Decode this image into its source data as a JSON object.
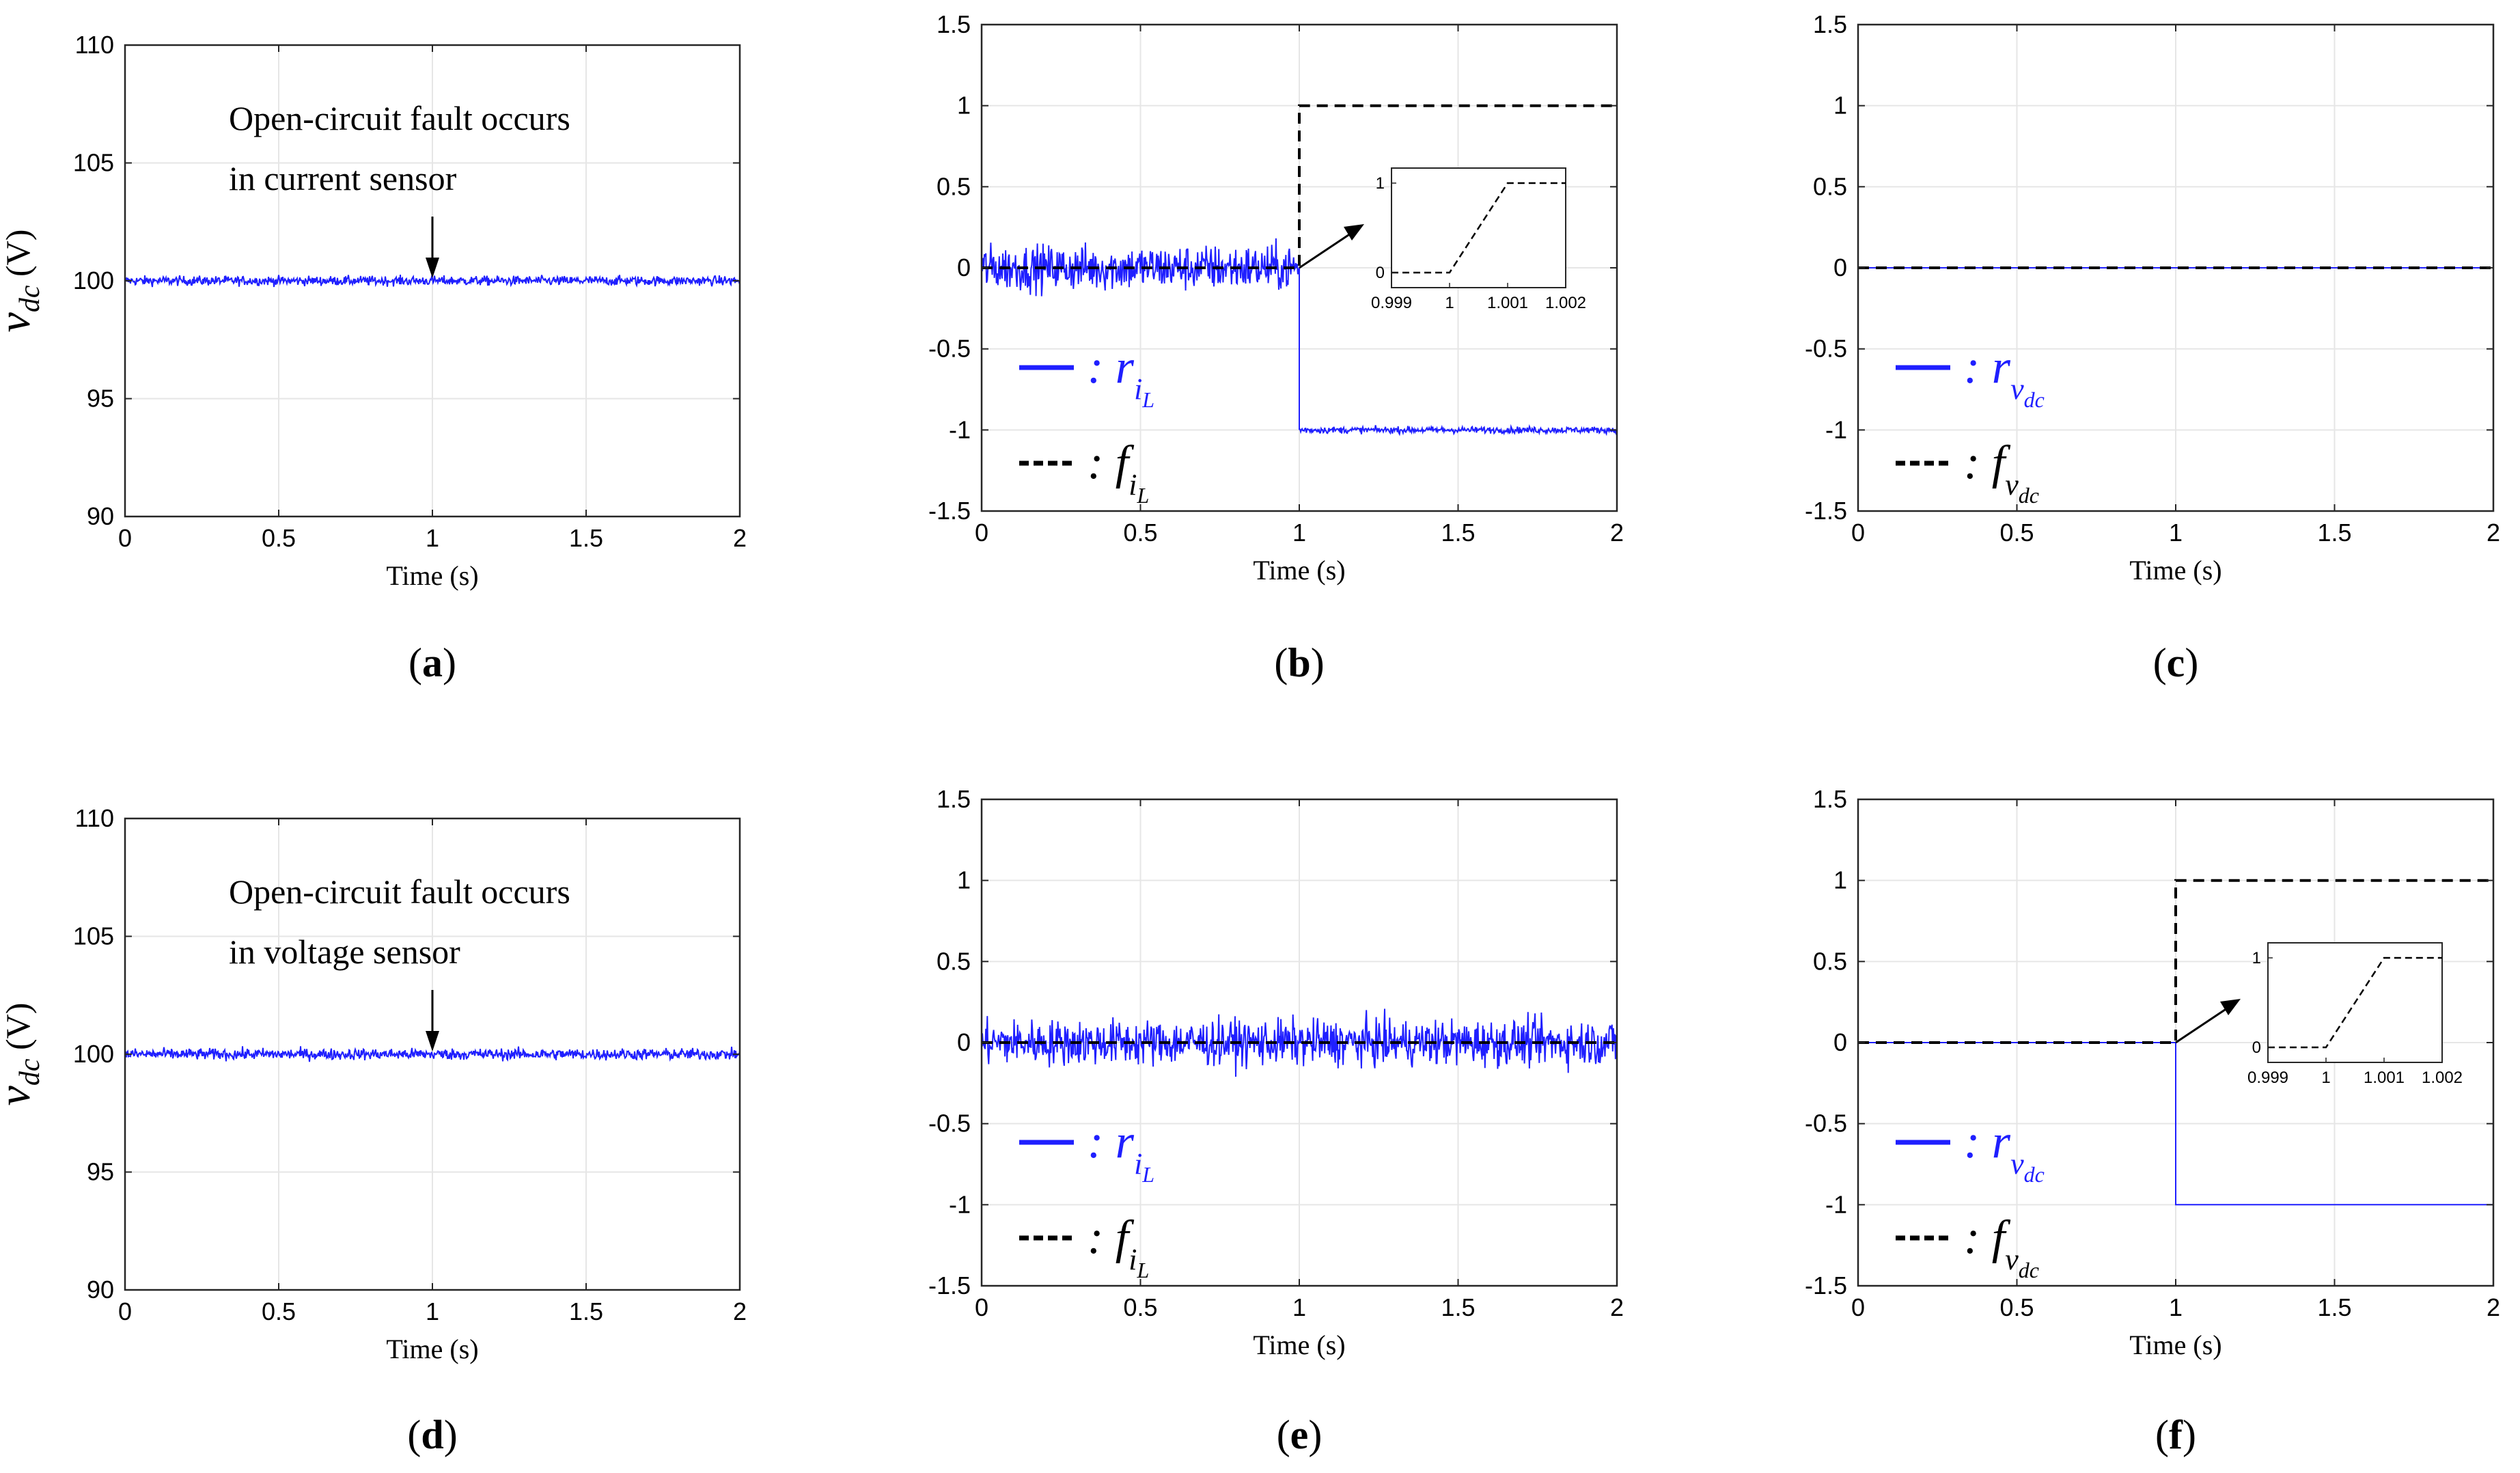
{
  "colors": {
    "residual": "#1f1fff",
    "fault": "#000000",
    "grid": "#e6e6e6",
    "axis": "#262626"
  },
  "chart_data": [
    {
      "id": "a",
      "caption": "a",
      "type": "line",
      "xlabel": "Time (s)",
      "ylabel": "v",
      "ylabel_sub": "dc",
      "ylabel_unit": "(V)",
      "xlim": [
        0,
        2
      ],
      "ylim": [
        90,
        110
      ],
      "xticks": [
        0,
        0.5,
        1,
        1.5,
        2
      ],
      "xtick_labels": [
        "0",
        "0.5",
        "1",
        "1.5",
        "2"
      ],
      "yticks": [
        90,
        95,
        100,
        105,
        110
      ],
      "ytick_labels": [
        "90",
        "95",
        "100",
        "105",
        "110"
      ],
      "annotation": {
        "lines": [
          "Open-circuit fault occurs",
          "in current sensor"
        ],
        "arrow_to": [
          1,
          100
        ]
      },
      "series": [
        {
          "name": "v_dc",
          "color": "#1f1fff",
          "kind": "noisy",
          "base": 100,
          "noise": 0.1
        }
      ],
      "legend": null,
      "inset": null
    },
    {
      "id": "b",
      "caption": "b",
      "type": "line",
      "xlabel": "Time (s)",
      "xlim": [
        0,
        2
      ],
      "ylim": [
        -1.5,
        1.5
      ],
      "xticks": [
        0,
        0.5,
        1,
        1.5,
        2
      ],
      "xtick_labels": [
        "0",
        "0.5",
        "1",
        "1.5",
        "2"
      ],
      "yticks": [
        -1.5,
        -1,
        -0.5,
        0,
        0.5,
        1,
        1.5
      ],
      "ytick_labels": [
        "-1.5",
        "-1",
        "-0.5",
        "0",
        "0.5",
        "1",
        "1.5"
      ],
      "series": [
        {
          "name": "r_iL",
          "color": "#1f1fff",
          "kind": "noisy_step",
          "base": 0,
          "after": -1,
          "step_at": 1,
          "noise_before": 0.07,
          "noise_after": 0.01
        },
        {
          "name": "f_iL",
          "color": "#000000",
          "dashed": true,
          "kind": "step",
          "base": 0,
          "after": 1,
          "step_at": 1
        }
      ],
      "legend": {
        "position": "bottom-left",
        "entries": [
          {
            "label": ": r",
            "sub": "i",
            "subsub": "L",
            "color": "#1f1fff",
            "dashed": false
          },
          {
            "label": ": f",
            "sub": "i",
            "subsub": "L",
            "color": "#000000",
            "dashed": true
          }
        ]
      },
      "inset": {
        "position": "upper-right",
        "xlim": [
          0.999,
          1.002
        ],
        "ylim": [
          0,
          1
        ],
        "xtick_labels": [
          "0.999",
          "1",
          "1.001",
          "1.002"
        ],
        "xticks": [
          0.999,
          1,
          1.001,
          1.002
        ],
        "ytick_labels": [
          "0",
          "1"
        ],
        "yticks": [
          0,
          1
        ],
        "points": [
          [
            0.999,
            0
          ],
          [
            1,
            0
          ],
          [
            1.001,
            1
          ],
          [
            1.002,
            1
          ]
        ],
        "arrow_from": [
          1,
          0
        ]
      }
    },
    {
      "id": "c",
      "caption": "c",
      "type": "line",
      "xlabel": "Time (s)",
      "xlim": [
        0,
        2
      ],
      "ylim": [
        -1.5,
        1.5
      ],
      "xticks": [
        0,
        0.5,
        1,
        1.5,
        2
      ],
      "xtick_labels": [
        "0",
        "0.5",
        "1",
        "1.5",
        "2"
      ],
      "yticks": [
        -1.5,
        -1,
        -0.5,
        0,
        0.5,
        1,
        1.5
      ],
      "ytick_labels": [
        "-1.5",
        "-1",
        "-0.5",
        "0",
        "0.5",
        "1",
        "1.5"
      ],
      "series": [
        {
          "name": "r_vdc",
          "color": "#1f1fff",
          "kind": "flat",
          "base": 0
        },
        {
          "name": "f_vdc",
          "color": "#000000",
          "dashed": true,
          "kind": "flat",
          "base": 0
        }
      ],
      "legend": {
        "position": "bottom-left",
        "entries": [
          {
            "label": ": r",
            "sub": "v",
            "subsub": "dc",
            "color": "#1f1fff",
            "dashed": false
          },
          {
            "label": ": f",
            "sub": "v",
            "subsub": "dc",
            "color": "#000000",
            "dashed": true
          }
        ]
      },
      "inset": null
    },
    {
      "id": "d",
      "caption": "d",
      "type": "line",
      "xlabel": "Time (s)",
      "ylabel": "v",
      "ylabel_sub": "dc",
      "ylabel_unit": "(V)",
      "xlim": [
        0,
        2
      ],
      "ylim": [
        90,
        110
      ],
      "xticks": [
        0,
        0.5,
        1,
        1.5,
        2
      ],
      "xtick_labels": [
        "0",
        "0.5",
        "1",
        "1.5",
        "2"
      ],
      "yticks": [
        90,
        95,
        100,
        105,
        110
      ],
      "ytick_labels": [
        "90",
        "95",
        "100",
        "105",
        "110"
      ],
      "annotation": {
        "lines": [
          "Open-circuit fault occurs",
          "in voltage sensor"
        ],
        "arrow_to": [
          1,
          100
        ]
      },
      "series": [
        {
          "name": "v_dc",
          "color": "#1f1fff",
          "kind": "noisy",
          "base": 100,
          "noise": 0.12
        }
      ],
      "legend": null,
      "inset": null
    },
    {
      "id": "e",
      "caption": "e",
      "type": "line",
      "xlabel": "Time (s)",
      "xlim": [
        0,
        2
      ],
      "ylim": [
        -1.5,
        1.5
      ],
      "xticks": [
        0,
        0.5,
        1,
        1.5,
        2
      ],
      "xtick_labels": [
        "0",
        "0.5",
        "1",
        "1.5",
        "2"
      ],
      "yticks": [
        -1.5,
        -1,
        -0.5,
        0,
        0.5,
        1,
        1.5
      ],
      "ytick_labels": [
        "-1.5",
        "-1",
        "-0.5",
        "0",
        "0.5",
        "1",
        "1.5"
      ],
      "series": [
        {
          "name": "r_iL",
          "color": "#1f1fff",
          "kind": "noisy",
          "base": 0,
          "noise": 0.07
        },
        {
          "name": "f_iL",
          "color": "#000000",
          "dashed": true,
          "kind": "flat",
          "base": 0
        }
      ],
      "legend": {
        "position": "bottom-left",
        "entries": [
          {
            "label": ": r",
            "sub": "i",
            "subsub": "L",
            "color": "#1f1fff",
            "dashed": false
          },
          {
            "label": ": f",
            "sub": "i",
            "subsub": "L",
            "color": "#000000",
            "dashed": true
          }
        ]
      },
      "inset": null
    },
    {
      "id": "f",
      "caption": "f",
      "type": "line",
      "xlabel": "Time (s)",
      "xlim": [
        0,
        2
      ],
      "ylim": [
        -1.5,
        1.5
      ],
      "xticks": [
        0,
        0.5,
        1,
        1.5,
        2
      ],
      "xtick_labels": [
        "0",
        "0.5",
        "1",
        "1.5",
        "2"
      ],
      "yticks": [
        -1.5,
        -1,
        -0.5,
        0,
        0.5,
        1,
        1.5
      ],
      "ytick_labels": [
        "-1.5",
        "-1",
        "-0.5",
        "0",
        "0.5",
        "1",
        "1.5"
      ],
      "series": [
        {
          "name": "r_vdc",
          "color": "#1f1fff",
          "kind": "step",
          "base": 0,
          "after": -1,
          "step_at": 1
        },
        {
          "name": "f_vdc",
          "color": "#000000",
          "dashed": true,
          "kind": "step",
          "base": 0,
          "after": 1,
          "step_at": 1
        }
      ],
      "legend": {
        "position": "bottom-left",
        "entries": [
          {
            "label": ": r",
            "sub": "v",
            "subsub": "dc",
            "color": "#1f1fff",
            "dashed": false
          },
          {
            "label": ": f",
            "sub": "v",
            "subsub": "dc",
            "color": "#000000",
            "dashed": true
          }
        ]
      },
      "inset": {
        "position": "upper-right",
        "xlim": [
          0.999,
          1.002
        ],
        "ylim": [
          0,
          1
        ],
        "xtick_labels": [
          "0.999",
          "1",
          "1.001",
          "1.002"
        ],
        "xticks": [
          0.999,
          1,
          1.001,
          1.002
        ],
        "ytick_labels": [
          "0",
          "1"
        ],
        "yticks": [
          0,
          1
        ],
        "points": [
          [
            0.999,
            0
          ],
          [
            1,
            0
          ],
          [
            1.001,
            1
          ],
          [
            1.002,
            1
          ]
        ],
        "arrow_from": [
          1,
          0
        ]
      }
    }
  ]
}
